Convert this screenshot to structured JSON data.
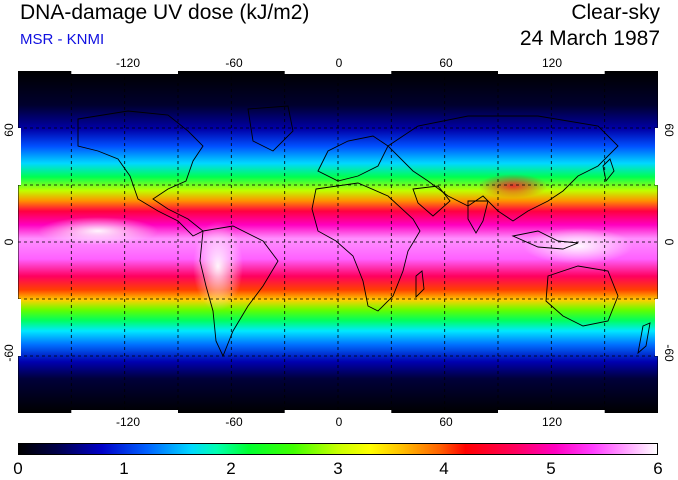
{
  "header": {
    "title": "DNA-damage UV dose (kJ/m2)",
    "subtitle": "MSR - KNMI",
    "sky": "Clear-sky",
    "date": "24 March 1987"
  },
  "map": {
    "lon_labels": [
      "-120",
      "-60",
      "0",
      "60",
      "120"
    ],
    "lat_labels": [
      "60",
      "0",
      "-60"
    ],
    "lon_range": [
      -180,
      180
    ],
    "lat_range": [
      -90,
      90
    ],
    "grid": "dashed every 30 degrees"
  },
  "colorbar": {
    "labels": [
      "0",
      "1",
      "2",
      "3",
      "4",
      "5",
      "6"
    ],
    "range": [
      0,
      6
    ]
  },
  "colors": {
    "subtitle": "#1010e0",
    "high": "#ff00c0",
    "low": "#000000"
  }
}
